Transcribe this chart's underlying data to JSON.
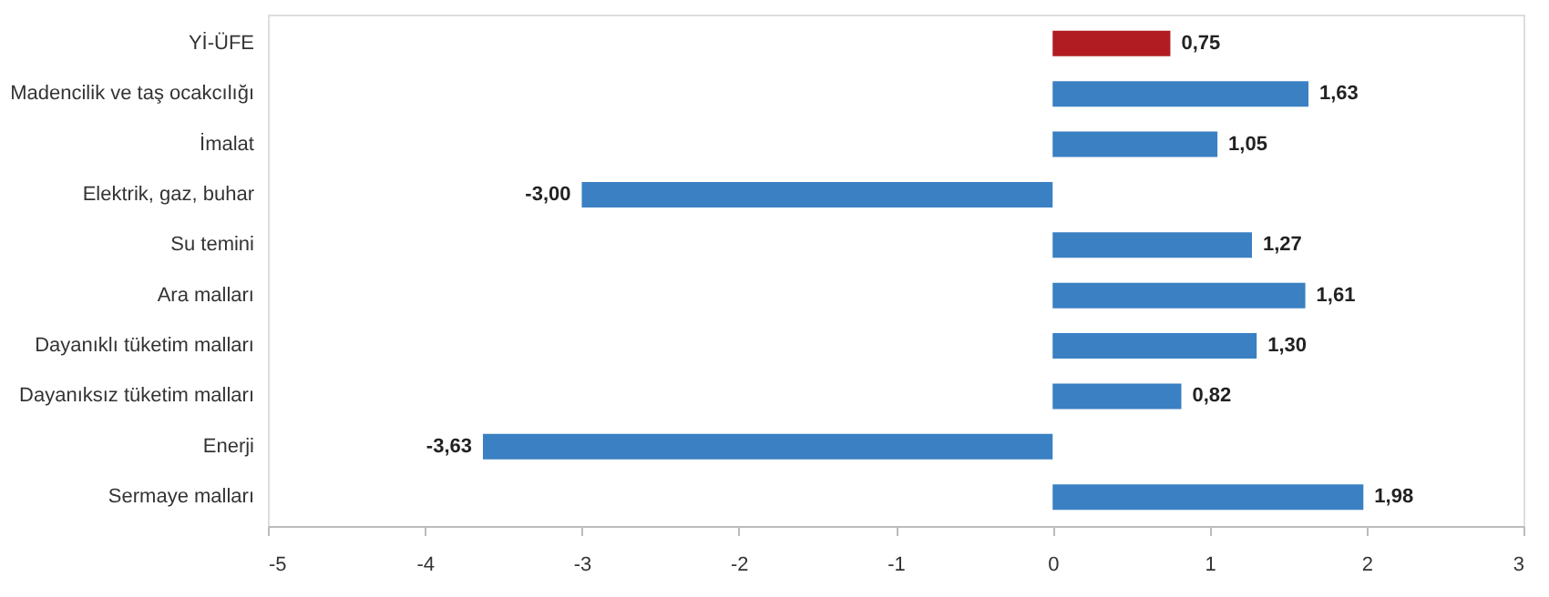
{
  "chart_data": {
    "type": "bar",
    "orientation": "horizontal",
    "categories": [
      "Yİ-ÜFE",
      "Madencilik ve taş ocakcılığı",
      "İmalat",
      "Elektrik, gaz, buhar",
      "Su temini",
      "Ara malları",
      "Dayanıklı tüketim malları",
      "Dayanıksız tüketim malları",
      "Enerji",
      "Sermaye malları"
    ],
    "values": [
      0.75,
      1.63,
      1.05,
      -3.0,
      1.27,
      1.61,
      1.3,
      0.82,
      -3.63,
      1.98
    ],
    "colors": [
      "#b01c22",
      "#3a80c3",
      "#3a80c3",
      "#3a80c3",
      "#3a80c3",
      "#3a80c3",
      "#3a80c3",
      "#3a80c3",
      "#3a80c3",
      "#3a80c3"
    ],
    "value_labels": [
      "0,75",
      "1,63",
      "1,05",
      "-3,00",
      "1,27",
      "1,61",
      "1,30",
      "0,82",
      "-3,63",
      "1,98"
    ],
    "xlim": [
      -5,
      3
    ],
    "xticks": [
      -5,
      -4,
      -3,
      -2,
      -1,
      0,
      1,
      2,
      3
    ],
    "grid": false
  }
}
